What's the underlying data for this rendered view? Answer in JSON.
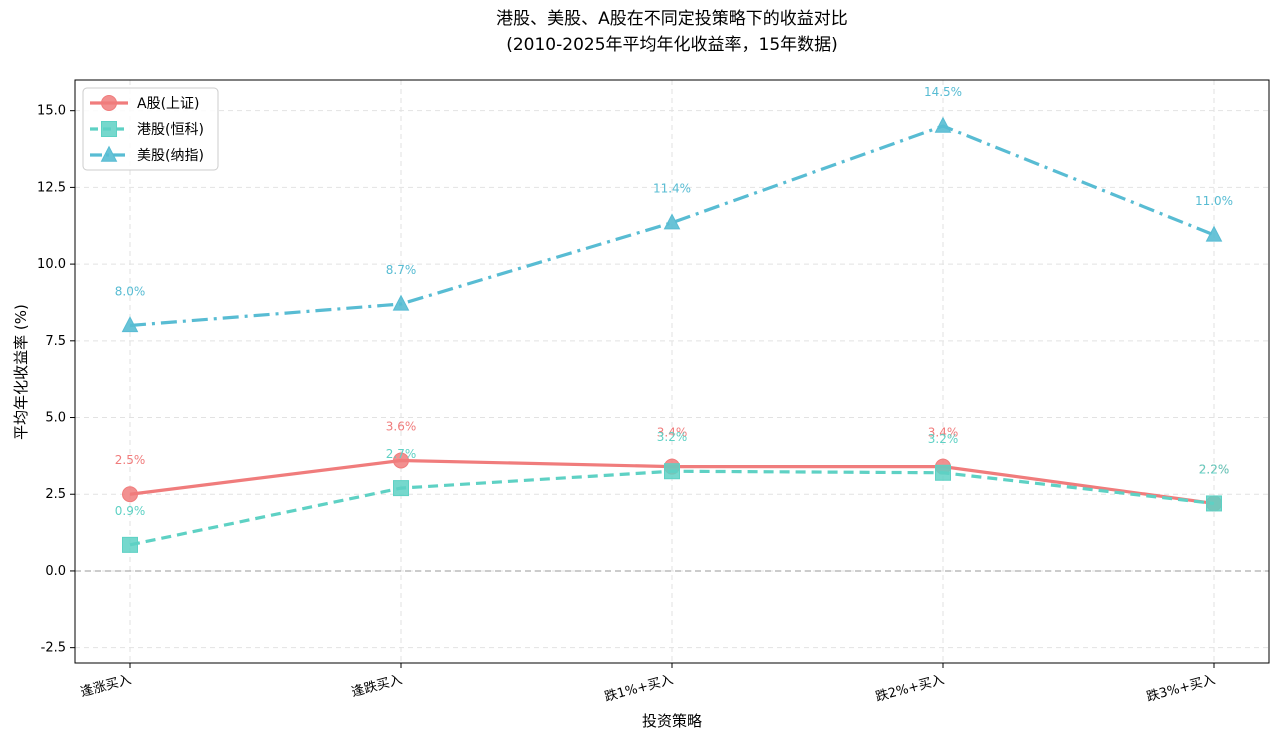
{
  "colors": {
    "a_share": "#F07C7C",
    "hk_share": "#5ED1C4",
    "us_share": "#58BCD3",
    "grid": "#e2e2e2",
    "zero_line": "#9a9a9a"
  },
  "chart_data": {
    "type": "line",
    "title_line1": "港股、美股、A股在不同定投策略下的收益对比",
    "title_line2": "(2010-2025年平均年化收益率，15年数据)",
    "xlabel": "投资策略",
    "ylabel": "平均年化收益率 (%)",
    "categories": [
      "逢涨买入",
      "逢跌买入",
      "跌1%+买入",
      "跌2%+买入",
      "跌3%+买入"
    ],
    "ylim": [
      -3.0,
      16.0
    ],
    "yticks": [
      -2.5,
      0.0,
      2.5,
      5.0,
      7.5,
      10.0,
      12.5,
      15.0
    ],
    "ytick_labels": [
      "-2.5",
      "0.0",
      "2.5",
      "5.0",
      "7.5",
      "10.0",
      "12.5",
      "15.0"
    ],
    "grid": true,
    "legend_position": "top-left",
    "series": [
      {
        "key": "a_share",
        "name": "A股(上证)",
        "values": [
          2.5,
          3.6,
          3.4,
          3.4,
          2.2
        ],
        "labels": [
          "2.5%",
          "3.6%",
          "3.4%",
          "3.4%",
          "2.2%"
        ],
        "line_style": "solid",
        "marker": "circle"
      },
      {
        "key": "hk_share",
        "name": "港股(恒科)",
        "values": [
          0.85,
          2.7,
          3.25,
          3.2,
          2.2
        ],
        "labels": [
          "0.9%",
          "2.7%",
          "3.2%",
          "3.2%",
          "2.2%"
        ],
        "line_style": "dashed",
        "marker": "square"
      },
      {
        "key": "us_share",
        "name": "美股(纳指)",
        "values": [
          8.0,
          8.7,
          11.35,
          14.5,
          10.95
        ],
        "labels": [
          "8.0%",
          "8.7%",
          "11.4%",
          "14.5%",
          "11.0%"
        ],
        "line_style": "dashdot",
        "marker": "triangle"
      }
    ]
  }
}
